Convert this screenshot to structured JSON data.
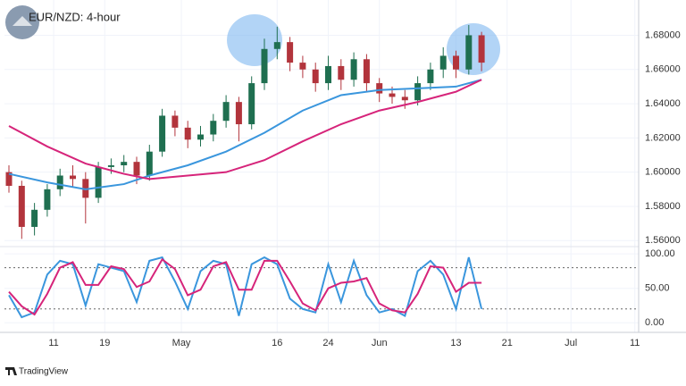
{
  "header": {
    "title": "EUR/NZD: 4-hour"
  },
  "footer": {
    "brand": "TradingView"
  },
  "chart_data": [
    {
      "type": "candlestick",
      "x": [
        3,
        5,
        7,
        9,
        11,
        13,
        15,
        17,
        19,
        21,
        23,
        25,
        27,
        29,
        31,
        33,
        35,
        37,
        39,
        41,
        43,
        45,
        47,
        49,
        51,
        53,
        55,
        57,
        59,
        61,
        63,
        65,
        67,
        69,
        71,
        73,
        75,
        77
      ],
      "open": [
        1.6,
        1.592,
        1.568,
        1.578,
        1.59,
        1.598,
        1.596,
        1.585,
        1.603,
        1.604,
        1.606,
        1.598,
        1.612,
        1.633,
        1.626,
        1.619,
        1.622,
        1.63,
        1.641,
        1.628,
        1.652,
        1.672,
        1.676,
        1.664,
        1.66,
        1.652,
        1.662,
        1.654,
        1.666,
        1.652,
        1.646,
        1.644,
        1.642,
        1.652,
        1.66,
        1.668,
        1.66,
        1.68
      ],
      "high": [
        1.604,
        1.595,
        1.582,
        1.593,
        1.602,
        1.604,
        1.6,
        1.606,
        1.608,
        1.61,
        1.609,
        1.616,
        1.637,
        1.636,
        1.63,
        1.627,
        1.634,
        1.645,
        1.644,
        1.656,
        1.678,
        1.685,
        1.679,
        1.668,
        1.664,
        1.668,
        1.666,
        1.67,
        1.669,
        1.655,
        1.65,
        1.648,
        1.656,
        1.664,
        1.673,
        1.671,
        1.686,
        1.682
      ],
      "low": [
        1.588,
        1.561,
        1.563,
        1.574,
        1.586,
        1.591,
        1.57,
        1.582,
        1.599,
        1.6,
        1.593,
        1.595,
        1.609,
        1.621,
        1.614,
        1.615,
        1.618,
        1.626,
        1.618,
        1.625,
        1.648,
        1.666,
        1.659,
        1.655,
        1.647,
        1.648,
        1.648,
        1.65,
        1.647,
        1.641,
        1.64,
        1.637,
        1.639,
        1.648,
        1.655,
        1.655,
        1.657,
        1.659
      ],
      "close": [
        1.592,
        1.568,
        1.578,
        1.59,
        1.598,
        1.596,
        1.585,
        1.603,
        1.604,
        1.606,
        1.598,
        1.612,
        1.633,
        1.626,
        1.619,
        1.622,
        1.63,
        1.641,
        1.628,
        1.652,
        1.672,
        1.676,
        1.664,
        1.66,
        1.652,
        1.662,
        1.654,
        1.666,
        1.652,
        1.646,
        1.644,
        1.642,
        1.652,
        1.66,
        1.668,
        1.66,
        1.68,
        1.664
      ],
      "up_color": "#1f6f50",
      "down_color": "#b2343c",
      "series": [
        {
          "color": "#3a96dd",
          "x": [
            3,
            9,
            15,
            21,
            25,
            31,
            37,
            43,
            49,
            55,
            61,
            67,
            73,
            77
          ],
          "values": [
            1.599,
            1.594,
            1.59,
            1.593,
            1.598,
            1.604,
            1.612,
            1.623,
            1.636,
            1.645,
            1.648,
            1.649,
            1.65,
            1.654
          ]
        },
        {
          "color": "#d6247a",
          "x": [
            3,
            9,
            15,
            21,
            25,
            31,
            37,
            43,
            49,
            55,
            61,
            67,
            73,
            77
          ],
          "values": [
            1.627,
            1.615,
            1.605,
            1.599,
            1.596,
            1.598,
            1.6,
            1.607,
            1.618,
            1.628,
            1.636,
            1.641,
            1.647,
            1.654
          ]
        }
      ],
      "xlim": [
        2.3,
        101.6
      ],
      "ylim": [
        1.557,
        1.698
      ],
      "yticks": [
        {
          "value": 1.56,
          "label": "1.56000"
        },
        {
          "value": 1.58,
          "label": "1.58000"
        },
        {
          "value": 1.6,
          "label": "1.60000"
        },
        {
          "value": 1.62,
          "label": "1.62000"
        },
        {
          "value": 1.64,
          "label": "1.64000"
        },
        {
          "value": 1.66,
          "label": "1.66000"
        },
        {
          "value": 1.68,
          "label": "1.68000"
        }
      ],
      "grid": true
    },
    {
      "type": "line",
      "x": [
        3,
        5,
        7,
        9,
        11,
        13,
        15,
        17,
        19,
        21,
        23,
        25,
        27,
        29,
        31,
        33,
        35,
        37,
        39,
        41,
        43,
        45,
        47,
        49,
        51,
        53,
        55,
        57,
        59,
        61,
        63,
        65,
        67,
        69,
        71,
        73,
        75,
        77
      ],
      "series": [
        {
          "color": "#3a96dd",
          "values": [
            40,
            8,
            15,
            70,
            90,
            85,
            25,
            85,
            80,
            75,
            30,
            90,
            95,
            60,
            20,
            75,
            90,
            85,
            10,
            85,
            95,
            85,
            35,
            20,
            15,
            85,
            30,
            90,
            40,
            15,
            20,
            10,
            75,
            90,
            70,
            20,
            95,
            20
          ]
        },
        {
          "color": "#d6247a",
          "values": [
            45,
            24,
            12,
            42,
            80,
            88,
            55,
            55,
            82,
            78,
            52,
            60,
            92,
            78,
            40,
            48,
            82,
            88,
            48,
            48,
            90,
            90,
            60,
            28,
            18,
            50,
            58,
            60,
            65,
            28,
            18,
            15,
            42,
            82,
            80,
            45,
            58,
            58
          ]
        }
      ],
      "levels": [
        80,
        20
      ],
      "xlim": [
        2.3,
        101.6
      ],
      "ylim": [
        -14,
        108
      ],
      "yticks": [
        {
          "value": 100,
          "label": "100.00"
        },
        {
          "value": 50,
          "label": "50.00"
        },
        {
          "value": 0,
          "label": "0.00"
        }
      ],
      "xticks": [
        {
          "value": 10,
          "label": "11"
        },
        {
          "value": 18,
          "label": "19"
        },
        {
          "value": 30,
          "label": "May"
        },
        {
          "value": 45,
          "label": "16"
        },
        {
          "value": 53,
          "label": "24"
        },
        {
          "value": 61,
          "label": "Jun"
        },
        {
          "value": 73,
          "label": "13"
        },
        {
          "value": 81,
          "label": "21"
        },
        {
          "value": 91,
          "label": "Jul"
        },
        {
          "value": 101,
          "label": "11"
        }
      ],
      "grid": true
    }
  ]
}
